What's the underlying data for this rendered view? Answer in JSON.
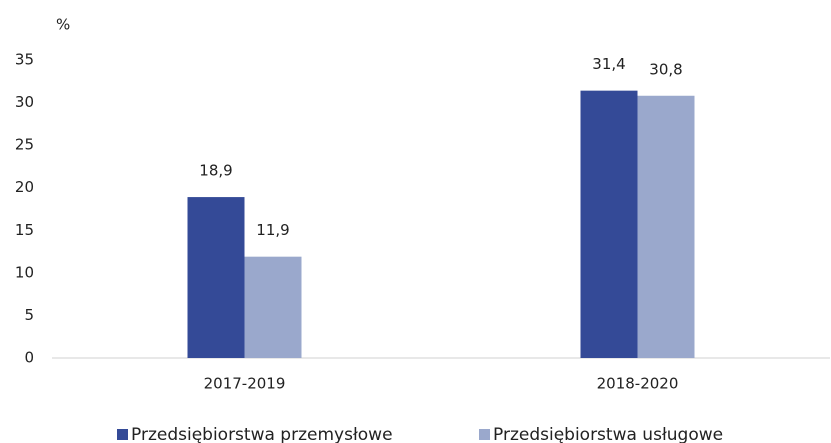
{
  "chart_data": {
    "type": "bar",
    "y_axis_label": "%",
    "categories": [
      "2017-2019",
      "2018-2020"
    ],
    "series": [
      {
        "name": "Przedsiębiorstwa przemysłowe",
        "color": "#344a97",
        "values": [
          18.9,
          31.4
        ],
        "value_labels": [
          "18,9",
          "31,4"
        ]
      },
      {
        "name": "Przedsiębiorstwa usługowe",
        "color": "#9aa8cc",
        "values": [
          11.9,
          30.8
        ],
        "value_labels": [
          "11,9",
          "30,8"
        ]
      }
    ],
    "ylim": [
      0,
      35
    ],
    "yticks": [
      0,
      5,
      10,
      15,
      20,
      25,
      30,
      35
    ],
    "grid": false,
    "legend": "bottom"
  }
}
